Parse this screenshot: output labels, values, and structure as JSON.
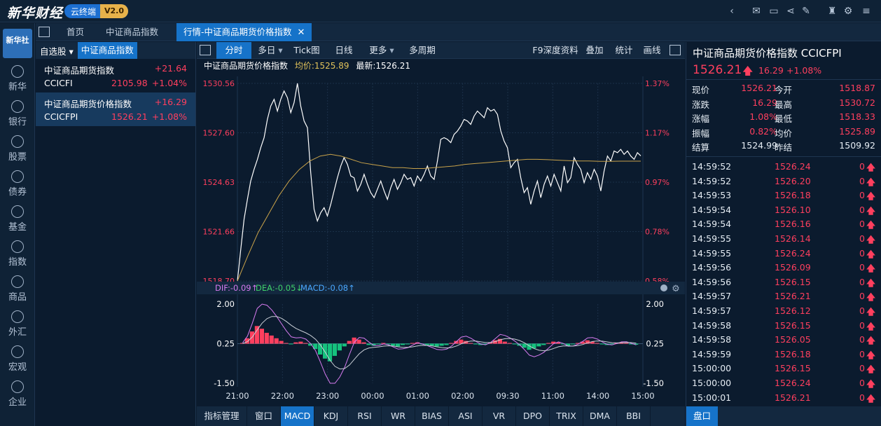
{
  "app": {
    "logo": "新华财经",
    "product": "云终端",
    "version": "V2.0"
  },
  "nav": {
    "logo_text": "新华社",
    "items": [
      {
        "label": "新华",
        "icon": "xinhua-icon"
      },
      {
        "label": "银行",
        "icon": "bank-icon"
      },
      {
        "label": "股票",
        "icon": "stock-icon"
      },
      {
        "label": "债券",
        "icon": "bond-icon"
      },
      {
        "label": "基金",
        "icon": "fund-icon"
      },
      {
        "label": "指数",
        "icon": "index-icon"
      },
      {
        "label": "商品",
        "icon": "commodity-icon"
      },
      {
        "label": "外汇",
        "icon": "forex-icon"
      },
      {
        "label": "宏观",
        "icon": "macro-icon"
      },
      {
        "label": "企业",
        "icon": "enterprise-icon"
      }
    ]
  },
  "tabs": [
    {
      "label": "首页"
    },
    {
      "label": "中证商品指数"
    },
    {
      "label": "行情-中证商品期货价格指数",
      "active": true
    }
  ],
  "watchlist": {
    "selector": "自选股",
    "group": "中证商品指数",
    "rows": [
      {
        "name": "中证商品期货指数",
        "change": "+21.64",
        "code": "CCICFI",
        "price": "2105.98",
        "pct": "+1.04%",
        "active": false
      },
      {
        "name": "中证商品期货价格指数",
        "change": "+16.29",
        "code": "CCICFPI",
        "price": "1526.21",
        "pct": "+1.08%",
        "active": true
      }
    ]
  },
  "chart_toolbar": {
    "buttons": [
      "分时",
      "多日",
      "Tick图",
      "日线",
      "更多",
      "多周期"
    ],
    "right_buttons": [
      "F9深度资料",
      "叠加",
      "统计",
      "画线"
    ]
  },
  "info": {
    "name": "中证商品期货价格指数",
    "avg_label": "均价:1525.89",
    "last_label": "最新:1526.21"
  },
  "macd_header": {
    "dif": "DIF:-0.09↑",
    "dea": "DEA:-0.05↓",
    "macd": "MACD:-0.08↑"
  },
  "indicators": [
    "指标管理",
    "窗口",
    "MACD",
    "KDJ",
    "RSI",
    "WR",
    "BIAS",
    "ASI",
    "VR",
    "DPO",
    "TRIX",
    "DMA",
    "BBI"
  ],
  "active_indicator": "MACD",
  "quote": {
    "title": "中证商品期货价格指数  CCICFPI",
    "price": "1526.21",
    "arrow": "🡅",
    "change": "16.29",
    "pct": "+1.08%",
    "stats_left": [
      {
        "label": "现价",
        "value": "1526.21"
      },
      {
        "label": "涨跌",
        "value": "16.29"
      },
      {
        "label": "涨幅",
        "value": "1.08%"
      },
      {
        "label": "振幅",
        "value": "0.82%"
      },
      {
        "label": "结算",
        "value": "1524.99"
      }
    ],
    "stats_right": [
      {
        "label": "今开",
        "value": "1518.87"
      },
      {
        "label": "最高",
        "value": "1530.72"
      },
      {
        "label": "最低",
        "value": "1518.33"
      },
      {
        "label": "均价",
        "value": "1525.89"
      },
      {
        "label": "昨结",
        "value": "1509.92"
      }
    ],
    "ticks": [
      {
        "time": "14:59:52",
        "price": "1526.24",
        "vol": "0"
      },
      {
        "time": "14:59:52",
        "price": "1526.20",
        "vol": "0"
      },
      {
        "time": "14:59:53",
        "price": "1526.18",
        "vol": "0"
      },
      {
        "time": "14:59:54",
        "price": "1526.10",
        "vol": "0"
      },
      {
        "time": "14:59:54",
        "price": "1526.16",
        "vol": "0"
      },
      {
        "time": "14:59:55",
        "price": "1526.14",
        "vol": "0"
      },
      {
        "time": "14:59:55",
        "price": "1526.24",
        "vol": "0"
      },
      {
        "time": "14:59:56",
        "price": "1526.09",
        "vol": "0"
      },
      {
        "time": "14:59:56",
        "price": "1526.15",
        "vol": "0"
      },
      {
        "time": "14:59:57",
        "price": "1526.21",
        "vol": "0"
      },
      {
        "time": "14:59:57",
        "price": "1526.12",
        "vol": "0"
      },
      {
        "time": "14:59:58",
        "price": "1526.15",
        "vol": "0"
      },
      {
        "time": "14:59:58",
        "price": "1526.05",
        "vol": "0"
      },
      {
        "time": "14:59:59",
        "price": "1526.18",
        "vol": "0"
      },
      {
        "time": "15:00:00",
        "price": "1526.15",
        "vol": "0"
      },
      {
        "time": "15:00:00",
        "price": "1526.24",
        "vol": "0"
      },
      {
        "time": "15:00:01",
        "price": "1526.21",
        "vol": "0"
      }
    ],
    "footer_tab": "盘口"
  },
  "colors": {
    "up": "#ff3f5e",
    "down": "#15c27d",
    "accent": "#1673c9",
    "avg_line": "#c8a24a",
    "price_line": "#ffffff"
  },
  "chart_data": [
    {
      "type": "line",
      "title": "",
      "y_ticks": [
        "1530.56",
        "1527.60",
        "1524.63",
        "1521.66",
        "1518.70"
      ],
      "pct_ticks": [
        "1.37%",
        "1.17%",
        "0.97%",
        "0.78%",
        "0.58%"
      ],
      "x_ticks": [
        "21:00",
        "22:00",
        "23:00",
        "00:00",
        "01:00",
        "02:00",
        "09:30",
        "11:00",
        "14:00",
        "15:00"
      ],
      "ylim": [
        1518.7,
        1530.56
      ],
      "series": [
        {
          "values": [
            1518.7,
            1520.6,
            1522.4,
            1523.6,
            1524.7,
            1525.4,
            1526.0,
            1526.7,
            1527.3,
            1528.4,
            1529.2,
            1529.6,
            1528.9,
            1529.6,
            1530.1,
            1529.7,
            1528.8,
            1529.4,
            1530.56,
            1529.2,
            1528.3,
            1527.9,
            1525.2,
            1523.0,
            1522.3,
            1522.8,
            1523.1,
            1522.6,
            1523.3,
            1524.1,
            1524.9,
            1525.6,
            1526.1,
            1525.7,
            1525.0,
            1524.9,
            1524.1,
            1524.5,
            1525.1,
            1524.5,
            1524.0,
            1523.7,
            1524.2,
            1524.7,
            1524.1,
            1523.6,
            1524.3,
            1524.8,
            1524.2,
            1524.6,
            1525.1,
            1524.8,
            1524.9,
            1524.4,
            1525.0,
            1524.7,
            1525.1,
            1525.6,
            1525.0,
            1524.8,
            1525.9,
            1527.2,
            1527.3,
            1527.2,
            1527.0,
            1527.5,
            1527.7,
            1528.0,
            1528.4,
            1528.3,
            1528.1,
            1528.6,
            1528.9,
            1528.7,
            1528.5,
            1529.1,
            1528.9,
            1529.0,
            1528.7,
            1527.7,
            1527.1,
            1526.7,
            1525.5,
            1525.8,
            1526.0,
            1524.9,
            1524.0,
            1524.3,
            1523.3,
            1524.1,
            1524.7,
            1523.7,
            1524.5,
            1525.0,
            1524.4,
            1525.1,
            1524.6,
            1524.1,
            1525.6,
            1524.6,
            1524.9,
            1526.1,
            1525.7,
            1525.4,
            1524.6,
            1525.2,
            1524.8,
            1525.4,
            1525.0,
            1524.1,
            1525.3,
            1526.2,
            1525.9,
            1526.5,
            1526.4,
            1526.6,
            1526.3,
            1526.5,
            1526.2,
            1526.0,
            1526.4,
            1526.21
          ],
          "color": "#ffffff"
        },
        {
          "values": [
            1518.7,
            1520.2,
            1521.6,
            1522.7,
            1523.8,
            1524.7,
            1525.4,
            1525.9,
            1526.2,
            1526.3,
            1526.2,
            1526.0,
            1525.8,
            1525.7,
            1525.6,
            1525.5,
            1525.5,
            1525.45,
            1525.45,
            1525.5,
            1525.55,
            1525.6,
            1525.7,
            1525.75,
            1525.8,
            1525.85,
            1525.9,
            1525.95,
            1526.0,
            1526.0,
            1525.98,
            1525.95,
            1525.92,
            1525.9,
            1525.9,
            1525.88,
            1525.88,
            1525.89,
            1525.89,
            1525.89
          ],
          "color": "#c8a24a"
        }
      ]
    },
    {
      "type": "bar",
      "title": "MACD",
      "y_ticks": [
        "2.00",
        "0.25",
        "-1.50"
      ],
      "ylim": [
        -1.5,
        2.0
      ],
      "zero": 0.25,
      "series": [
        {
          "name": "MACD",
          "values": [
            0.05,
            0.4,
            0.9,
            1.3,
            1.1,
            0.8,
            0.6,
            0.4,
            0.2,
            0.05,
            -0.05,
            0.1,
            0.15,
            0.05,
            -0.15,
            -0.4,
            -0.8,
            -1.1,
            -1.3,
            -0.9,
            -0.5,
            -0.2,
            0.2,
            0.45,
            0.3,
            0.1,
            -0.1,
            -0.15,
            -0.05,
            0.05,
            -0.05,
            -0.15,
            -0.2,
            -0.1,
            -0.05,
            0.05,
            0.1,
            -0.05,
            -0.1,
            -0.15,
            -0.2,
            -0.15,
            -0.1,
            0.05,
            0.2,
            0.3,
            0.2,
            0.05,
            -0.05,
            -0.1,
            -0.05,
            0.1,
            0.25,
            0.35,
            0.15,
            0.05,
            -0.05,
            -0.15,
            -0.3,
            -0.45,
            -0.35,
            -0.2,
            -0.1,
            0.05,
            0.15,
            0.1,
            -0.05,
            -0.15,
            -0.05,
            0.05,
            0.15,
            0.25,
            0.15,
            0.05,
            -0.05,
            -0.1,
            -0.05,
            0.05,
            0.1,
            0.05,
            -0.05,
            -0.08
          ],
          "color": "#ff3f5e"
        }
      ]
    }
  ]
}
